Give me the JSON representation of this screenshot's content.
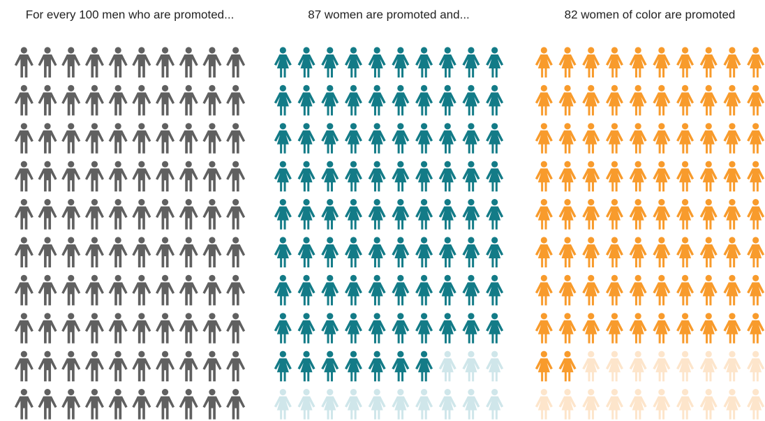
{
  "chart_data": [
    {
      "type": "pictogram",
      "title": "For every 100 men who are promoted...",
      "value": 100,
      "total": 100,
      "icon": "man",
      "color": "#606060",
      "faded_color": "#dcdcdc"
    },
    {
      "type": "pictogram",
      "title": "87 women are promoted and...",
      "value": 87,
      "total": 100,
      "icon": "woman",
      "color": "#137b87",
      "faded_color": "#cfe6ea"
    },
    {
      "type": "pictogram",
      "title": "82 women of color are promoted",
      "value": 82,
      "total": 100,
      "icon": "woman",
      "color": "#f89b2c",
      "faded_color": "#fde5cb"
    }
  ]
}
